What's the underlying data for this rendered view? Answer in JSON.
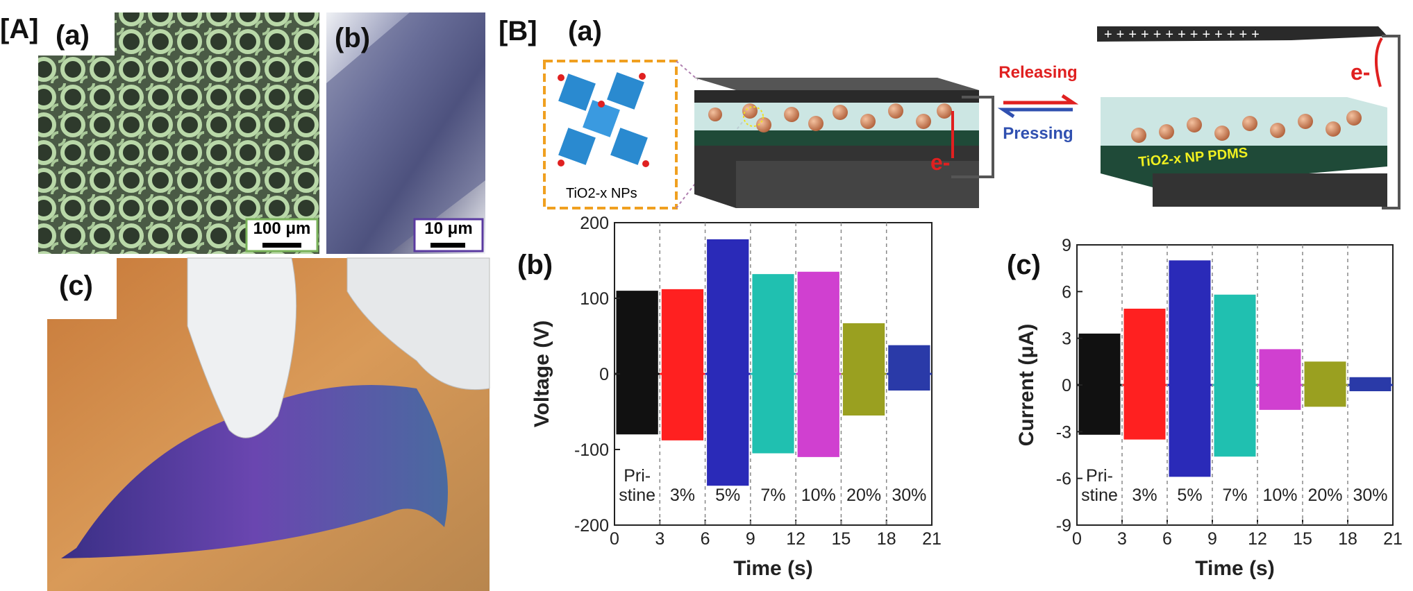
{
  "panel_a": {
    "label": "[A]",
    "sem_a": {
      "label": "(a)",
      "scale": "100 μm"
    },
    "sem_b": {
      "label": "(b)",
      "scale": "10 μm"
    },
    "photo": {
      "label": "(c)"
    }
  },
  "panel_b": {
    "label": "[B]",
    "schematic": {
      "label": "(a)",
      "inset": "TiO2-x NPs",
      "release": "Releasing",
      "press": "Pressing",
      "electron_left": "e-",
      "electron_right": "e-",
      "layer": "TiO2-x NP  PDMS"
    }
  },
  "chart_data": [
    {
      "type": "segmented-signal",
      "panel": "(b)",
      "x_label": "Time (s)",
      "y_label": "Voltage (V)",
      "xlim": [
        0,
        21
      ],
      "xticks": [
        0,
        3,
        6,
        9,
        12,
        15,
        18,
        21
      ],
      "ylim": [
        -200,
        200
      ],
      "yticks": [
        -200,
        -100,
        0,
        100,
        200
      ],
      "categories": [
        [
          "Pri-",
          "stine"
        ],
        [
          "3%"
        ],
        [
          "5%"
        ],
        [
          "7%"
        ],
        [
          "10%"
        ],
        [
          "20%"
        ],
        [
          "30%"
        ]
      ],
      "series": [
        {
          "color": "#111111",
          "high": 110,
          "low": -80
        },
        {
          "color": "#ff2020",
          "high": 112,
          "low": -88
        },
        {
          "color": "#2a2ab8",
          "high": 178,
          "low": -148
        },
        {
          "color": "#20c0b0",
          "high": 132,
          "low": -105
        },
        {
          "color": "#d040d0",
          "high": 135,
          "low": -110
        },
        {
          "color": "#9aa020",
          "high": 67,
          "low": -55
        },
        {
          "color": "#2a3aa8",
          "high": 38,
          "low": -22
        }
      ]
    },
    {
      "type": "segmented-signal",
      "panel": "(c)",
      "x_label": "Time (s)",
      "y_label": "Current (μA)",
      "xlim": [
        0,
        21
      ],
      "xticks": [
        0,
        3,
        6,
        9,
        12,
        15,
        18,
        21
      ],
      "ylim": [
        -9,
        9
      ],
      "yticks": [
        -9,
        -6,
        -3,
        0,
        3,
        6,
        9
      ],
      "categories": [
        [
          "Pri-",
          "stine"
        ],
        [
          "3%"
        ],
        [
          "5%"
        ],
        [
          "7%"
        ],
        [
          "10%"
        ],
        [
          "20%"
        ],
        [
          "30%"
        ]
      ],
      "series": [
        {
          "color": "#111111",
          "high": 3.3,
          "low": -3.2
        },
        {
          "color": "#ff2020",
          "high": 4.9,
          "low": -3.5
        },
        {
          "color": "#2a2ab8",
          "high": 8.0,
          "low": -5.9
        },
        {
          "color": "#20c0b0",
          "high": 5.8,
          "low": -4.6
        },
        {
          "color": "#d040d0",
          "high": 2.3,
          "low": -1.6
        },
        {
          "color": "#9aa020",
          "high": 1.5,
          "low": -1.4
        },
        {
          "color": "#2a3aa8",
          "high": 0.5,
          "low": -0.4
        }
      ]
    }
  ]
}
